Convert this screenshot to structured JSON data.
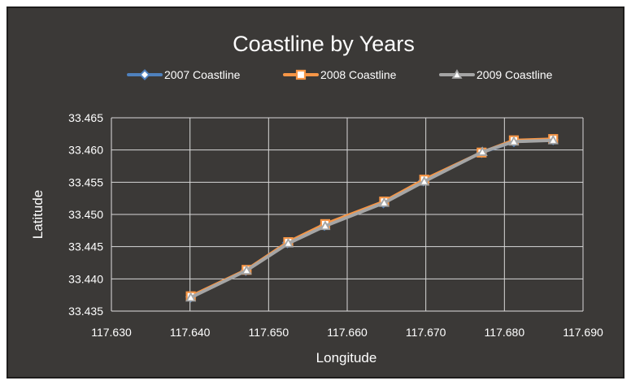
{
  "chart_data": {
    "type": "line",
    "title": "Coastline by Years",
    "xlabel": "Longitude",
    "ylabel": "Latitude",
    "xlim": [
      117.63,
      117.69
    ],
    "ylim": [
      33.435,
      33.465
    ],
    "x_ticks": [
      "117.630",
      "117.640",
      "117.650",
      "117.660",
      "117.670",
      "117.680",
      "117.690"
    ],
    "y_ticks": [
      "33.465",
      "33.460",
      "33.455",
      "33.450",
      "33.445",
      "33.440",
      "33.435"
    ],
    "grid": true,
    "legend_position": "top",
    "series": [
      {
        "name": "2007 Coastline",
        "color": "#4f81bd",
        "marker": "diamond",
        "x": [
          117.6401,
          117.6471,
          117.6524,
          117.6571,
          117.6646,
          117.6697,
          117.6771,
          117.6812,
          117.6862
        ],
        "y": [
          33.4372,
          33.4413,
          33.4456,
          33.4483,
          33.4518,
          33.4552,
          33.4596,
          33.4613,
          33.4616
        ]
      },
      {
        "name": "2008 Coastline",
        "color": "#f79646",
        "marker": "square",
        "x": [
          117.6401,
          117.6472,
          117.6525,
          117.6572,
          117.6647,
          117.6698,
          117.6771,
          117.6812,
          117.6862
        ],
        "y": [
          33.4373,
          33.4414,
          33.4457,
          33.4485,
          33.452,
          33.4554,
          33.4596,
          33.4615,
          33.4617
        ]
      },
      {
        "name": "2009 Coastline",
        "color": "#a5a5a5",
        "marker": "triangle",
        "x": [
          117.6401,
          117.6472,
          117.6525,
          117.6572,
          117.6647,
          117.6698,
          117.6772,
          117.6812,
          117.6862
        ],
        "y": [
          33.4371,
          33.4413,
          33.4455,
          33.4482,
          33.4518,
          33.4551,
          33.4597,
          33.4613,
          33.4615
        ]
      }
    ]
  }
}
